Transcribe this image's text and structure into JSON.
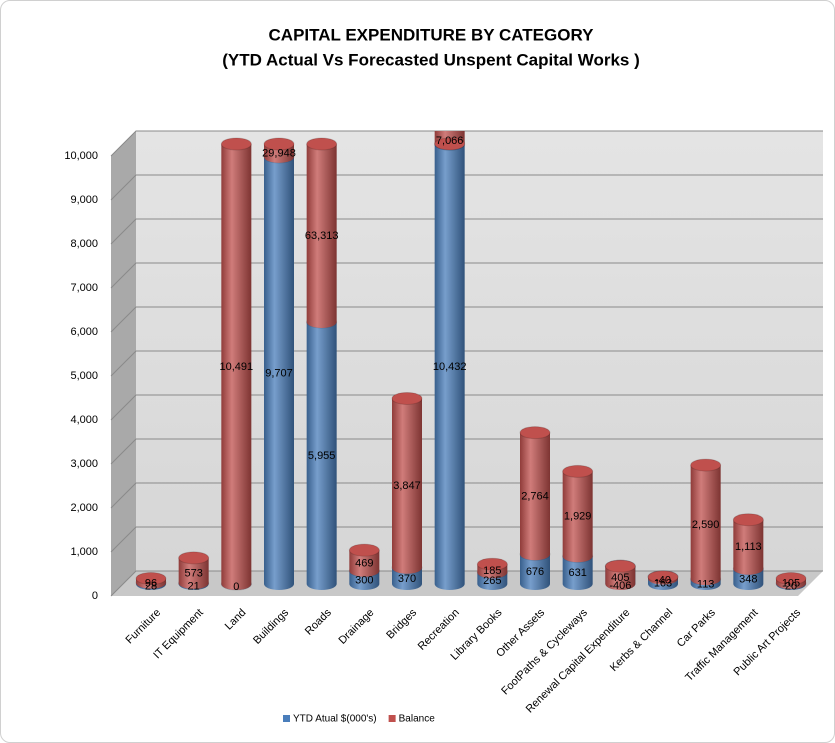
{
  "chart_data": {
    "type": "bar3d",
    "title": "CAPITAL EXPENDITURE BY CATEGORY",
    "subtitle": "(YTD  Actual Vs Forecasted Unspent Capital Works )",
    "categories": [
      "Furniture",
      "IT Equipment",
      "Land",
      "Buildings",
      "Roads",
      "Drainage",
      "Bridges",
      "Recreation",
      "Library Books",
      "Other Assets",
      "FootPaths & Cycleways",
      "Renewal Capital Expenditure",
      "Kerbs & Channel",
      "Car Parks",
      "Traffic Management",
      "Public Art Projects"
    ],
    "stacked": true,
    "series": [
      {
        "name": "YTD Atual  $(000's)",
        "color": "#4a7ebb",
        "values": [
          28,
          21,
          0,
          9707,
          5955,
          300,
          370,
          10432,
          265,
          676,
          631,
          405,
          163,
          113,
          348,
          20
        ],
        "value_labels": [
          "28",
          "21",
          "0",
          "9,707",
          "5,955",
          "300",
          "370",
          "10,432",
          "265",
          "676",
          "631",
          "405",
          "163",
          "113",
          "348",
          "20"
        ]
      },
      {
        "name": "Balance",
        "color": "#c0504d",
        "values": [
          96,
          573,
          10491,
          29948,
          63313,
          469,
          3847,
          7066,
          185,
          2764,
          1929,
          -406,
          -40,
          2590,
          1113,
          105
        ],
        "value_labels": [
          "96",
          "573",
          "10,491",
          "29,948",
          "63,313",
          "469",
          "3,847",
          "7,066",
          "185",
          "2,764",
          "1,929",
          "-406",
          "-40",
          "2,590",
          "1,113",
          "105"
        ]
      }
    ],
    "ylim": [
      0,
      10000
    ],
    "yticks": [
      0,
      {
        "value": 1000,
        "label": "1,000"
      },
      {
        "value": 2000,
        "label": "2,000"
      },
      {
        "value": 3000,
        "label": "3,000"
      },
      {
        "value": 4000,
        "label": "4,000"
      },
      {
        "value": 5000,
        "label": "5,000"
      },
      {
        "value": 6000,
        "label": "6,000"
      },
      {
        "value": 7000,
        "label": "7,000"
      },
      {
        "value": 8000,
        "label": "8,000"
      },
      {
        "value": 9000,
        "label": "9,000"
      },
      {
        "value": 10000,
        "label": "10,000"
      }
    ],
    "grid": true,
    "legend": "bottom"
  }
}
